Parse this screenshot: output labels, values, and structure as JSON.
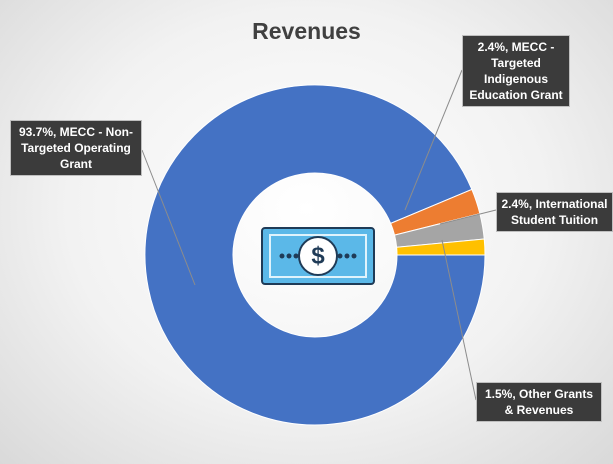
{
  "chart_data": {
    "type": "donut",
    "title": "Revenues",
    "values": [
      93.7,
      2.4,
      2.4,
      1.5
    ],
    "value_labels": [
      "93.7%, MECC - Non-Targeted Operating Grant",
      "2.4%, MECC - Targeted Indigenous Education Grant",
      "2.4%, International Student Tuition",
      "1.5%, Other Grants & Revenues"
    ],
    "colors": [
      "#4472c4",
      "#ed7d31",
      "#a5a5a5",
      "#ffc000"
    ]
  }
}
